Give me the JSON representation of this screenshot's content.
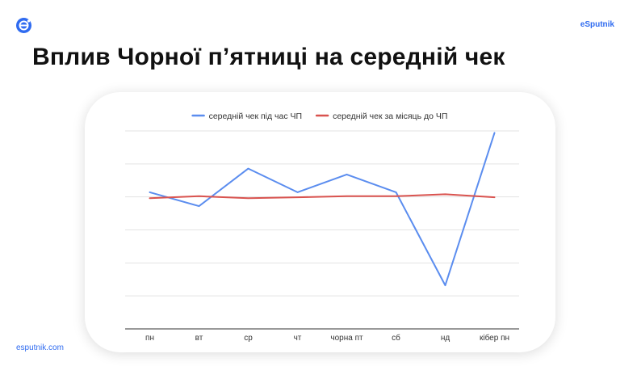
{
  "brand": {
    "name": "eSputnik",
    "url": "esputnik.com",
    "accent": "#2F6BF0"
  },
  "slide": {
    "title": "Вплив Чорної п’ятниці на середній чек"
  },
  "chart_data": {
    "type": "line",
    "title": "",
    "xlabel": "",
    "ylabel": "",
    "categories": [
      "пн",
      "вт",
      "ср",
      "чт",
      "чорна пт",
      "сб",
      "нд",
      "кібер пн"
    ],
    "ylim": [
      0,
      10
    ],
    "y_tick_labels_visible": false,
    "grid": true,
    "legend_position": "top",
    "series": [
      {
        "name": "середній чек під час ЧП",
        "color": "#5B8DEF",
        "values": [
          6.9,
          6.2,
          8.1,
          6.9,
          7.8,
          6.9,
          2.2,
          9.9
        ]
      },
      {
        "name": "середній чек за місяць до ЧП",
        "color": "#D9534F",
        "values": [
          6.6,
          6.7,
          6.6,
          6.65,
          6.7,
          6.7,
          6.8,
          6.65
        ]
      }
    ]
  }
}
